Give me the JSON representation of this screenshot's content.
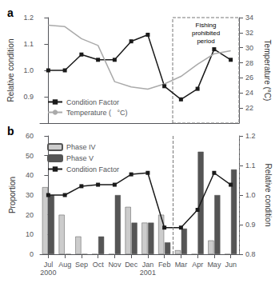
{
  "chart_data": [
    {
      "type": "line",
      "title": "a",
      "categories": [
        null,
        null,
        null,
        null,
        null,
        null,
        null,
        null,
        null,
        null,
        null,
        null
      ],
      "ylabel": "Relative condition",
      "y2label": "Temperature (°C)",
      "series": [
        {
          "name": "Condition Factor",
          "type": "line",
          "axis": "y",
          "color": "#1a1a1a",
          "marker": "square",
          "values": [
            1.0,
            1.0,
            1.06,
            1.04,
            1.04,
            1.11,
            1.135,
            0.94,
            0.89,
            0.93,
            1.08,
            1.04
          ]
        },
        {
          "name": "Temperature (   °C)",
          "type": "line",
          "axis": "y2",
          "color": "#aaaaaa",
          "marker": "none",
          "values": [
            33.0,
            32.8,
            31.2,
            30.3,
            25.5,
            24.8,
            24.5,
            25.2,
            26.2,
            27.8,
            29.2,
            29.6
          ]
        }
      ],
      "ylim": [
        0.8,
        1.2
      ],
      "yticks": [
        0.9,
        {
          "value": 1.0,
          "label": "1.0"
        },
        1.1,
        1.2
      ],
      "y2lim": [
        20,
        34
      ],
      "y2ticks": [
        22,
        24,
        26,
        28,
        30,
        32,
        34
      ],
      "annotations": [
        {
          "text": "Fishing\nprohibited\nperiod",
          "start": 8,
          "end": 11
        }
      ],
      "legend": "lower left",
      "grid": false
    },
    {
      "type": "bar",
      "title": "b",
      "categories": [
        "Jul\n2000",
        "Aug",
        "Sep",
        "Oct",
        "Nov",
        "Dec",
        "Jan\n2001",
        "Feb",
        "Mar",
        "Apr",
        "May",
        "Jun"
      ],
      "ylabel": "Proportion",
      "y2label": "Relative condition",
      "series": [
        {
          "name": "Phase IV",
          "type": "bar",
          "axis": "y",
          "color": "#cccccc",
          "values": [
            34,
            20,
            9,
            0,
            0,
            24,
            16,
            20,
            2,
            0,
            7,
            0
          ]
        },
        {
          "name": "Phase V",
          "type": "bar",
          "axis": "y",
          "color": "#555555",
          "values": [
            30,
            0,
            0,
            9,
            30,
            16,
            16,
            6,
            13,
            52,
            30,
            43
          ]
        },
        {
          "name": "Condition Factor",
          "type": "line",
          "axis": "y2",
          "color": "#1a1a1a",
          "marker": "square",
          "values": [
            1.0,
            1.0,
            1.03,
            1.035,
            1.035,
            1.07,
            1.075,
            0.89,
            0.89,
            0.95,
            1.075,
            1.035
          ]
        }
      ],
      "ylim": [
        0,
        60
      ],
      "yticks": [
        0,
        10,
        20,
        30,
        40,
        50,
        60
      ],
      "y2lim": [
        0.8,
        1.2
      ],
      "y2ticks": [
        0.8,
        0.9,
        {
          "value": 1.0,
          "label": "1.0"
        },
        1.1,
        1.2
      ],
      "annotations": [
        {
          "start": 8,
          "end": 11
        }
      ],
      "legend": "upper left",
      "grid": false
    }
  ]
}
